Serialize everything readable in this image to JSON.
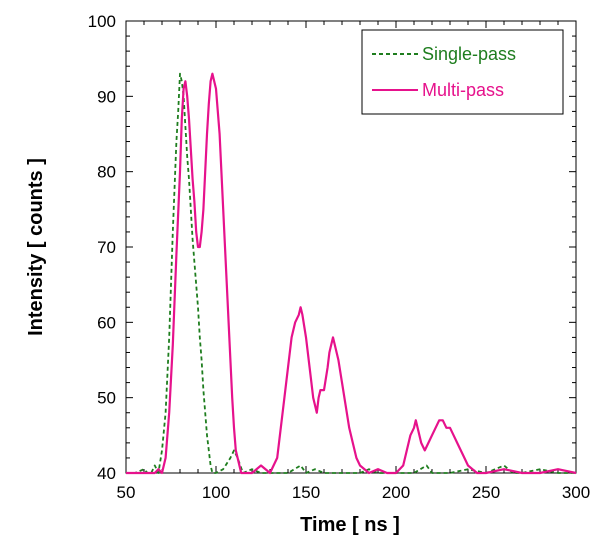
{
  "chart_data": {
    "type": "line",
    "xlabel": "Time [ ns ]",
    "ylabel": "Intensity [ counts ]",
    "xlim": [
      50,
      300
    ],
    "ylim": [
      40,
      100
    ],
    "xticks": [
      50,
      100,
      150,
      200,
      250,
      300
    ],
    "yticks": [
      40,
      50,
      60,
      70,
      80,
      90,
      100
    ],
    "grid": false,
    "legend_position": "top-right",
    "series": [
      {
        "name": "Single-pass",
        "color": "#1e7d1e",
        "style": "dashed",
        "x": [
          50,
          55,
          60,
          62,
          64,
          66,
          68,
          70,
          72,
          74,
          76,
          78,
          79,
          80,
          81,
          82,
          83,
          84,
          85,
          86,
          87,
          88,
          89,
          90,
          91,
          92,
          93,
          94,
          95,
          96,
          97,
          98,
          100,
          104,
          108,
          110,
          112,
          115,
          120,
          125,
          130,
          140,
          147,
          150,
          155,
          160,
          170,
          180,
          185,
          190,
          200,
          210,
          217,
          220,
          230,
          240,
          250,
          260,
          265,
          270,
          280,
          290,
          300
        ],
        "values": [
          40,
          40,
          40.5,
          40,
          40,
          41,
          40,
          43,
          48,
          58,
          72,
          84,
          88,
          93,
          92,
          90,
          86,
          82,
          79,
          75,
          71,
          68,
          65,
          62,
          58,
          55,
          51,
          48,
          45,
          43,
          41,
          40,
          40,
          40.5,
          42,
          43,
          42,
          40,
          40.5,
          40,
          40,
          40,
          41,
          40,
          40.5,
          40,
          40,
          40,
          40.5,
          40,
          40,
          40,
          41,
          40,
          40,
          40.5,
          40,
          41,
          40,
          40,
          40.5,
          40,
          40
        ]
      },
      {
        "name": "Multi-pass",
        "color": "#e6128c",
        "style": "solid",
        "x": [
          50,
          60,
          66,
          68,
          70,
          72,
          74,
          76,
          78,
          80,
          81,
          82,
          83,
          84,
          85,
          86,
          87,
          88,
          89,
          90,
          91,
          92,
          93,
          94,
          95,
          96,
          97,
          98,
          99,
          100,
          101,
          102,
          103,
          104,
          105,
          106,
          107,
          108,
          109,
          110,
          111,
          112,
          113,
          114,
          116,
          120,
          125,
          130,
          134,
          136,
          138,
          140,
          142,
          144,
          146,
          147,
          148,
          150,
          152,
          154,
          155,
          156,
          157,
          158,
          160,
          162,
          163,
          164,
          165,
          166,
          168,
          170,
          172,
          174,
          176,
          178,
          180,
          185,
          190,
          195,
          200,
          204,
          206,
          208,
          210,
          211,
          212,
          214,
          216,
          218,
          220,
          222,
          224,
          226,
          228,
          230,
          232,
          234,
          236,
          238,
          240,
          245,
          250,
          260,
          270,
          280,
          290,
          300
        ],
        "values": [
          40,
          40,
          40,
          40.5,
          40,
          42,
          48,
          57,
          69,
          80,
          87,
          91,
          92,
          90,
          87,
          83,
          79,
          76,
          72,
          70,
          70,
          72,
          75,
          80,
          85,
          89,
          92,
          93,
          92,
          91,
          88,
          85,
          80,
          75,
          70,
          65,
          60,
          55,
          50,
          46,
          43,
          42,
          41,
          40,
          40,
          40,
          41,
          40,
          42,
          46,
          50,
          54,
          58,
          60,
          61,
          62,
          61,
          58,
          54,
          50,
          49,
          48,
          50,
          51,
          51,
          54,
          56,
          57,
          58,
          57,
          55,
          52,
          49,
          46,
          44,
          42,
          41,
          40,
          40.5,
          40,
          40,
          41,
          43,
          45,
          46,
          47,
          46,
          44,
          43,
          44,
          45,
          46,
          47,
          47,
          46,
          46,
          45,
          44,
          43,
          42,
          41,
          40,
          40,
          40.5,
          40,
          40,
          40.5,
          40
        ]
      }
    ]
  }
}
